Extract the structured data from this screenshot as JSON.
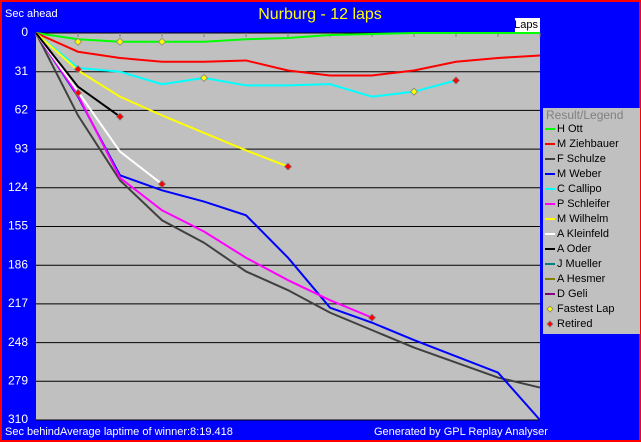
{
  "chart_data": {
    "type": "line",
    "title": "Nurburg - 12 laps",
    "y_label_top": "Sec ahead",
    "y_label_bottom": "Sec behind",
    "x_label": "Laps",
    "footer_note": "Average laptime of winner:8:19.418",
    "footer_credit": "Generated by GPL Replay Analyser",
    "legend_title": "Result/Legend",
    "x": [
      0,
      1,
      2,
      3,
      4,
      5,
      6,
      7,
      8,
      9,
      10,
      11,
      12
    ],
    "xlim": [
      0,
      12
    ],
    "ylim": [
      0,
      310
    ],
    "yticks": [
      0,
      31,
      62,
      93,
      124,
      155,
      186,
      217,
      248,
      279,
      310
    ],
    "y_inverted": true,
    "grid": true,
    "series": [
      {
        "name": "H Ott",
        "color": "#00ff00",
        "values": [
          0,
          5,
          7,
          7,
          7,
          5,
          4,
          1.6,
          0.8,
          0,
          0,
          0,
          0
        ]
      },
      {
        "name": "M Ziehbauer",
        "color": "#ff0000",
        "values": [
          0,
          15,
          20,
          23,
          23,
          22,
          30,
          34,
          34,
          30,
          23,
          20,
          18
        ]
      },
      {
        "name": "F Schulze",
        "color": "#404040",
        "values": [
          0,
          66,
          118,
          150,
          168,
          191,
          206,
          224,
          238,
          252,
          264,
          276,
          284
        ]
      },
      {
        "name": "M Weber",
        "color": "#0000ff",
        "values": [
          0,
          51,
          114,
          126,
          135,
          146,
          180,
          220,
          232,
          246,
          259,
          272,
          310
        ]
      },
      {
        "name": "C Callipo",
        "color": "#00ffff",
        "values": [
          0,
          28,
          31,
          41,
          36,
          42,
          42,
          41,
          51,
          47,
          38,
          null,
          null
        ]
      },
      {
        "name": "P Schleifer",
        "color": "#ff00ff",
        "values": [
          0,
          50,
          116,
          142,
          159,
          180,
          198,
          214,
          228,
          null,
          null,
          null,
          null
        ]
      },
      {
        "name": "M Wilhelm",
        "color": "#ffff00",
        "values": [
          0,
          30,
          51,
          66,
          80,
          94,
          107,
          null,
          null,
          null,
          null,
          null,
          null
        ]
      },
      {
        "name": "A Kleinfeld",
        "color": "#ffffff",
        "values": [
          0,
          47,
          95,
          121,
          null,
          null,
          null,
          null,
          null,
          null,
          null,
          null,
          null
        ]
      },
      {
        "name": "A Oder",
        "color": "#000000",
        "values": [
          0,
          43,
          67,
          null,
          null,
          null,
          null,
          null,
          null,
          null,
          null,
          null,
          null
        ]
      },
      {
        "name": "J Mueller",
        "color": "#008080",
        "values": [
          null,
          null,
          null,
          null,
          null,
          null,
          null,
          null,
          null,
          null,
          null,
          null,
          null
        ]
      },
      {
        "name": "A Hesmer",
        "color": "#808000",
        "values": [
          null,
          null,
          null,
          null,
          null,
          null,
          null,
          null,
          null,
          null,
          null,
          null,
          null
        ]
      },
      {
        "name": "D Geli",
        "color": "#800080",
        "values": [
          null,
          null,
          null,
          null,
          null,
          null,
          null,
          null,
          null,
          null,
          null,
          null,
          null
        ]
      },
      {
        "name": "Fastest Lap",
        "color": "#ffff00",
        "marker": "diamond",
        "x": [
          1,
          2,
          3,
          4,
          9
        ],
        "values": [
          7,
          7,
          7,
          36,
          47
        ]
      },
      {
        "name": "Retired",
        "color": "#ff0000",
        "marker": "diamond",
        "x": [
          1,
          1,
          2,
          3,
          6,
          8,
          10
        ],
        "values": [
          29,
          48,
          67,
          121,
          107,
          228,
          38
        ]
      }
    ]
  }
}
